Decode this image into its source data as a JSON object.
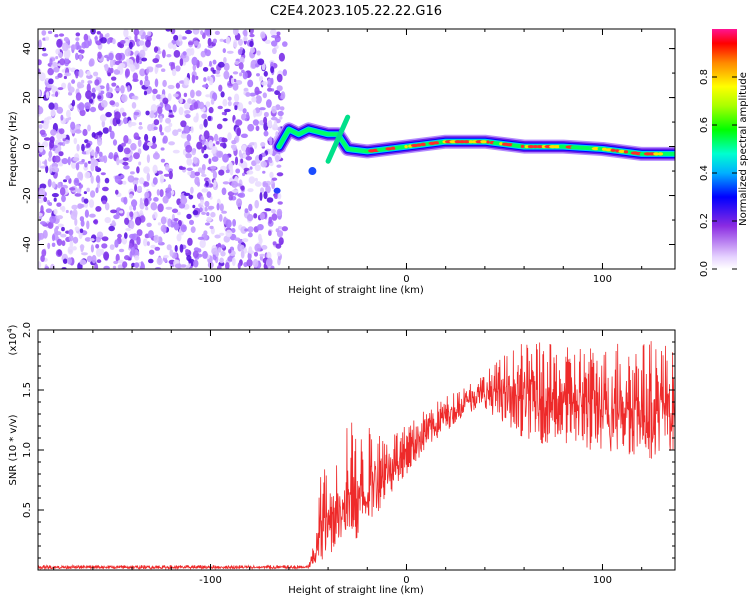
{
  "title": "C2E4.2023.105.22.22.G16",
  "chart_data": [
    {
      "type": "heatmap",
      "xlabel": "Height of straight line (km)",
      "ylabel": "Frequency (Hz)",
      "xlim": [
        -188,
        137
      ],
      "ylim": [
        -50,
        48
      ],
      "xticks": [
        "-100",
        "0",
        "100"
      ],
      "yticks": [
        "-40",
        "-20",
        "0",
        "20",
        "40"
      ],
      "colorbar": {
        "label": "Normalized spectral amplitude",
        "range": [
          0,
          1
        ],
        "ticks": [
          "0.0",
          "0.2",
          "0.4",
          "0.6",
          "0.8"
        ]
      },
      "features": {
        "noise_region_km": [
          -188,
          -62
        ],
        "doppler_track": [
          {
            "x": -65,
            "y": 0
          },
          {
            "x": -60,
            "y": 7
          },
          {
            "x": -55,
            "y": 5
          },
          {
            "x": -50,
            "y": 7
          },
          {
            "x": -45,
            "y": 6
          },
          {
            "x": -40,
            "y": 5
          },
          {
            "x": -35,
            "y": 5
          },
          {
            "x": -30,
            "y": -1
          },
          {
            "x": -20,
            "y": -2
          },
          {
            "x": 0,
            "y": 0
          },
          {
            "x": 20,
            "y": 2
          },
          {
            "x": 40,
            "y": 2
          },
          {
            "x": 60,
            "y": 0
          },
          {
            "x": 80,
            "y": 0
          },
          {
            "x": 100,
            "y": -1
          },
          {
            "x": 120,
            "y": -3
          },
          {
            "x": 137,
            "y": -3
          }
        ]
      }
    },
    {
      "type": "line",
      "xlabel": "Height of straight line (km)",
      "ylabel": "SNR (10 * v/v)",
      "yscale_note": "(x10",
      "yscale_exp": "4",
      "scale_factor": 10000,
      "xlim": [
        -188,
        137
      ],
      "ylim": [
        0,
        2.0
      ],
      "xticks": [
        "-100",
        "0",
        "100"
      ],
      "yticks": [
        "0.5",
        "1.0",
        "1.5",
        "2.0"
      ],
      "series": [
        {
          "color": "#ee2a2a",
          "envelope": [
            {
              "x": -188,
              "low": 0.01,
              "high": 0.04
            },
            {
              "x": -50,
              "low": 0.01,
              "high": 0.04
            },
            {
              "x": -46,
              "low": 0.03,
              "high": 0.3
            },
            {
              "x": -43,
              "low": 0.05,
              "high": 1.05
            },
            {
              "x": -40,
              "low": 0.1,
              "high": 0.7
            },
            {
              "x": -35,
              "low": 0.2,
              "high": 0.95
            },
            {
              "x": -30,
              "low": 0.1,
              "high": 1.35
            },
            {
              "x": -25,
              "low": 0.2,
              "high": 1.1
            },
            {
              "x": -20,
              "low": 0.35,
              "high": 1.2
            },
            {
              "x": -10,
              "low": 0.6,
              "high": 1.15
            },
            {
              "x": 0,
              "low": 0.8,
              "high": 1.2
            },
            {
              "x": 10,
              "low": 1.0,
              "high": 1.35
            },
            {
              "x": 20,
              "low": 1.15,
              "high": 1.45
            },
            {
              "x": 30,
              "low": 1.3,
              "high": 1.55
            },
            {
              "x": 40,
              "low": 1.35,
              "high": 1.65
            },
            {
              "x": 50,
              "low": 1.2,
              "high": 1.8
            },
            {
              "x": 60,
              "low": 1.1,
              "high": 1.9
            },
            {
              "x": 70,
              "low": 1.05,
              "high": 1.9
            },
            {
              "x": 80,
              "low": 1.05,
              "high": 1.85
            },
            {
              "x": 90,
              "low": 1.0,
              "high": 1.9
            },
            {
              "x": 100,
              "low": 0.95,
              "high": 1.85
            },
            {
              "x": 110,
              "low": 0.95,
              "high": 1.95
            },
            {
              "x": 120,
              "low": 0.95,
              "high": 1.9
            },
            {
              "x": 130,
              "low": 0.9,
              "high": 1.95
            },
            {
              "x": 137,
              "low": 1.0,
              "high": 1.8
            }
          ]
        }
      ]
    }
  ]
}
